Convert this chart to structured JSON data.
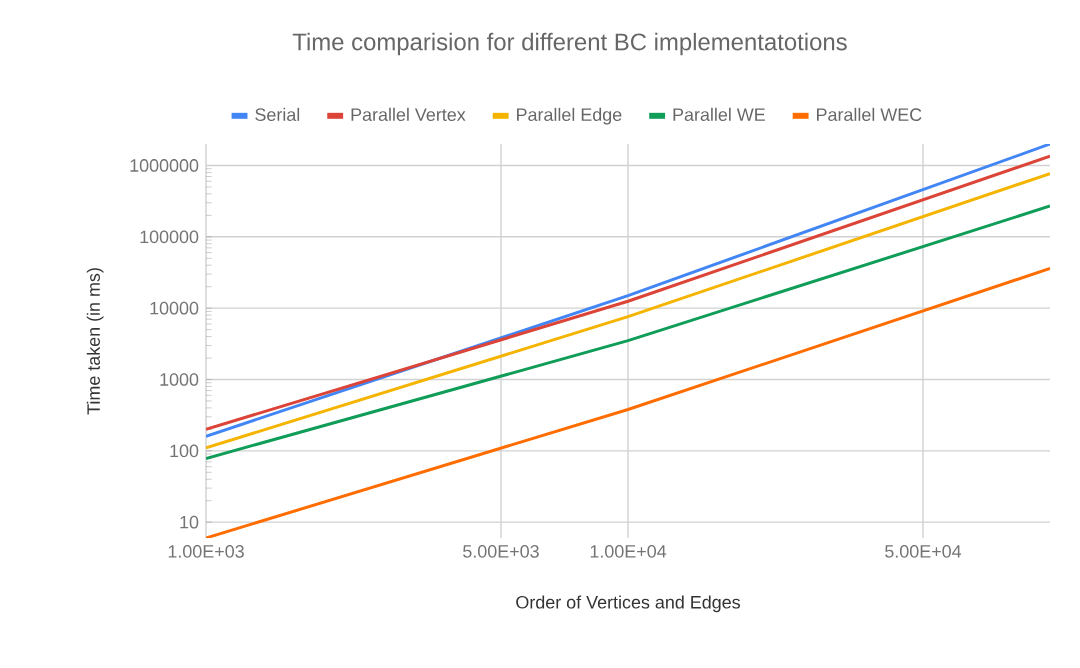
{
  "chart_data": {
    "type": "line",
    "title": "Time comparision for different BC implementatotions",
    "xlabel": "Order of Vertices and Edges",
    "ylabel": "Time taken (in ms)",
    "x": [
      1000,
      10000,
      100000
    ],
    "series": [
      {
        "name": "Serial",
        "color": "#4285f4",
        "values": [
          160,
          15000,
          2000000
        ]
      },
      {
        "name": "Parallel Vertex",
        "color": "#db4437",
        "values": [
          200,
          12500,
          1350000
        ]
      },
      {
        "name": "Parallel Edge",
        "color": "#f4b400",
        "values": [
          110,
          7600,
          770000
        ]
      },
      {
        "name": "Parallel WE",
        "color": "#0f9d58",
        "values": [
          78,
          3500,
          270000
        ]
      },
      {
        "name": "Parallel WEC",
        "color": "#ff6d00",
        "values": [
          6,
          380,
          36000
        ]
      }
    ],
    "log": "xy",
    "xlim": [
      1000,
      100000
    ],
    "ylim": [
      6,
      2000000
    ],
    "xticks": [
      {
        "value": 1000,
        "label": "1.00E+03"
      },
      {
        "value": 5000,
        "label": "5.00E+03"
      },
      {
        "value": 10000,
        "label": "1.00E+04"
      },
      {
        "value": 50000,
        "label": "5.00E+04"
      }
    ],
    "yticks": [
      10,
      100,
      1000,
      10000,
      100000,
      1000000
    ],
    "grid": true,
    "legend": "top",
    "marker": "none",
    "line_style": "solid"
  }
}
